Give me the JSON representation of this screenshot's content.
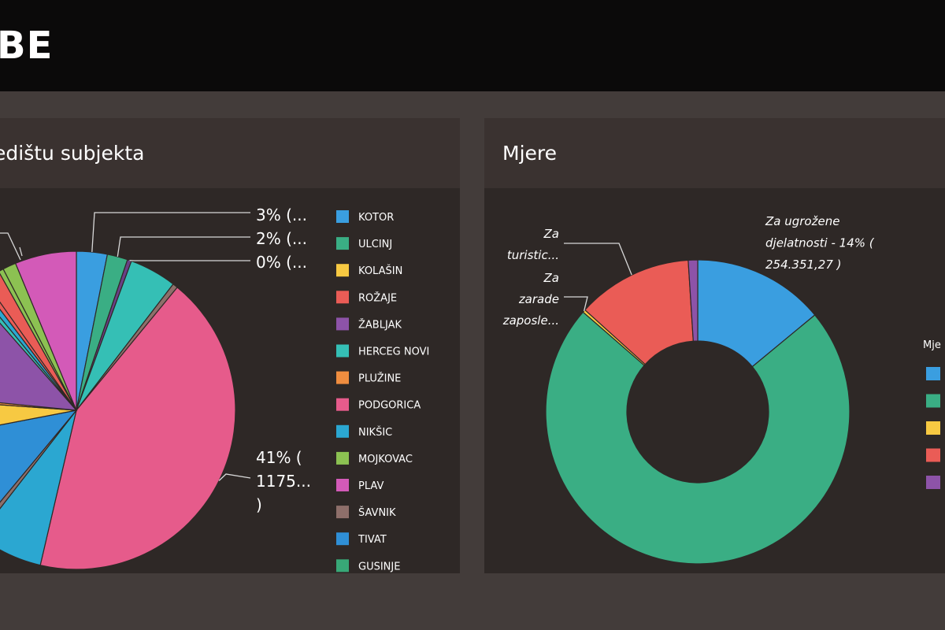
{
  "header": {
    "title": "BE"
  },
  "panels": {
    "left_title": "edištu subjekta",
    "right_title": "Mjere",
    "right_legend_title": "Mje"
  },
  "chart_data": [
    {
      "type": "pie",
      "title": "edištu subjekta",
      "legend_position": "right",
      "categories": [
        "KOTOR",
        "ULCINJ",
        "KOLAŠIN",
        "ROŽAJE",
        "ŽABLJAK",
        "HERCEG NOVI",
        "PLUŽINE",
        "PODGORICA",
        "NIKŠIC",
        "MOJKOVAC",
        "PLAV",
        "ŠAVNIK",
        "TIVAT",
        "GUSINJE"
      ],
      "colors": [
        "#3a9ee0",
        "#3aae84",
        "#f7c942",
        "#ea5c56",
        "#8d53a8",
        "#35bfb5",
        "#ef8d3f",
        "#e65b8b",
        "#2ba7d1",
        "#8cc152",
        "#d35ab8",
        "#8e6f6a",
        "#2f8fd6",
        "#38a877"
      ],
      "data_labels": [
        "3% (...",
        "2% (...",
        "0% (...",
        "41% (\n1175...\n)"
      ],
      "slices": [
        {
          "label": "KOTOR",
          "value": 3,
          "color": "#3a9ee0"
        },
        {
          "label": "ULCINJ",
          "value": 2,
          "color": "#3aae84"
        },
        {
          "label": "",
          "value": 0.4,
          "color": "#6a3f86"
        },
        {
          "label": "HERCEG NOVI",
          "value": 4.6,
          "color": "#35bfb5"
        },
        {
          "label": "",
          "value": 0.5,
          "color": "#8e6f6a"
        },
        {
          "label": "PODGORICA",
          "value": 41,
          "color": "#e65b8b"
        },
        {
          "label": "NIKŠIC",
          "value": 6.6,
          "color": "#2ba7d1"
        },
        {
          "label": "",
          "value": 0.5,
          "color": "#8e6f6a"
        },
        {
          "label": "TIVAT",
          "value": 10.5,
          "color": "#2f8fd6"
        },
        {
          "label": "KOLAŠIN",
          "value": 4,
          "color": "#f7c942"
        },
        {
          "label": "",
          "value": 0.4,
          "color": "#ef8d3f"
        },
        {
          "label": "ŽABLJAK",
          "value": 11.5,
          "color": "#8d53a8"
        },
        {
          "label": "",
          "value": 0.5,
          "color": "#35bfb5"
        },
        {
          "label": "",
          "value": 0.6,
          "color": "#2ba7d1"
        },
        {
          "label": "",
          "value": 0.5,
          "color": "#ea5c56"
        },
        {
          "label": "",
          "value": 1.6,
          "color": "#ea5c56"
        },
        {
          "label": "",
          "value": 0.5,
          "color": "#8cc152"
        },
        {
          "label": "MOJKOVAC",
          "value": 1.3,
          "color": "#8cc152"
        },
        {
          "label": "PLAV",
          "value": 6,
          "color": "#d35ab8"
        }
      ]
    },
    {
      "type": "pie",
      "subtype": "donut",
      "title": "Mjere",
      "legend_title": "Mje",
      "legend_position": "right",
      "series": [
        {
          "name": "Za ugrožene djelatnosti - 14% ( 254.351,27 )",
          "value": 14,
          "color": "#3a9ee0"
        },
        {
          "name": "",
          "value": 72.4,
          "color": "#3aae84"
        },
        {
          "name": "Za zarade zaposle...",
          "value": 0.3,
          "color": "#f7c942"
        },
        {
          "name": "Za turistic...",
          "value": 12.3,
          "color": "#ea5c56"
        },
        {
          "name": "",
          "value": 1,
          "color": "#8d53a8"
        }
      ],
      "data_labels": [
        {
          "lines": [
            "Za ugrožene",
            "djelatnosti - 14% (",
            "254.351,27 )"
          ]
        },
        {
          "lines": [
            "Za",
            "turistic..."
          ]
        },
        {
          "lines": [
            "Za",
            "zarade",
            "zaposle..."
          ]
        }
      ]
    }
  ]
}
